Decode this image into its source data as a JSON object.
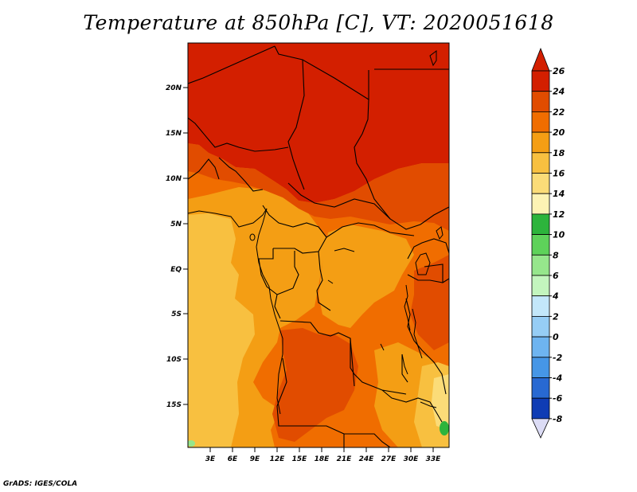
{
  "title": "Temperature at 850hPa [C], VT: 2020051618",
  "credit": "GrADS: IGES/COLA",
  "map": {
    "lat_labels": [
      "20N",
      "15N",
      "10N",
      "5N",
      "EQ",
      "5S",
      "10S",
      "15S"
    ],
    "lon_labels": [
      "3E",
      "6E",
      "9E",
      "12E",
      "15E",
      "18E",
      "21E",
      "24E",
      "27E",
      "30E",
      "33E"
    ]
  },
  "colorbar": {
    "labels": [
      "26",
      "24",
      "22",
      "20",
      "18",
      "16",
      "14",
      "12",
      "10",
      "8",
      "6",
      "4",
      "2",
      "0",
      "-2",
      "-4",
      "-6",
      "-8"
    ],
    "colors": [
      "#d31f00",
      "#e14c00",
      "#f06d00",
      "#f49e14",
      "#f8c040",
      "#fbdc78",
      "#fdf3b4",
      "#2db43c",
      "#5ed25a",
      "#96e68c",
      "#c3f5be",
      "#c3e7fa",
      "#96cdf5",
      "#6eb4f0",
      "#4696e6",
      "#2869d2",
      "#0f3cb4",
      "#0a1e82"
    ],
    "top_arrow_color": "#d31f00",
    "bottom_arrow_color": "#dcdcf5"
  }
}
